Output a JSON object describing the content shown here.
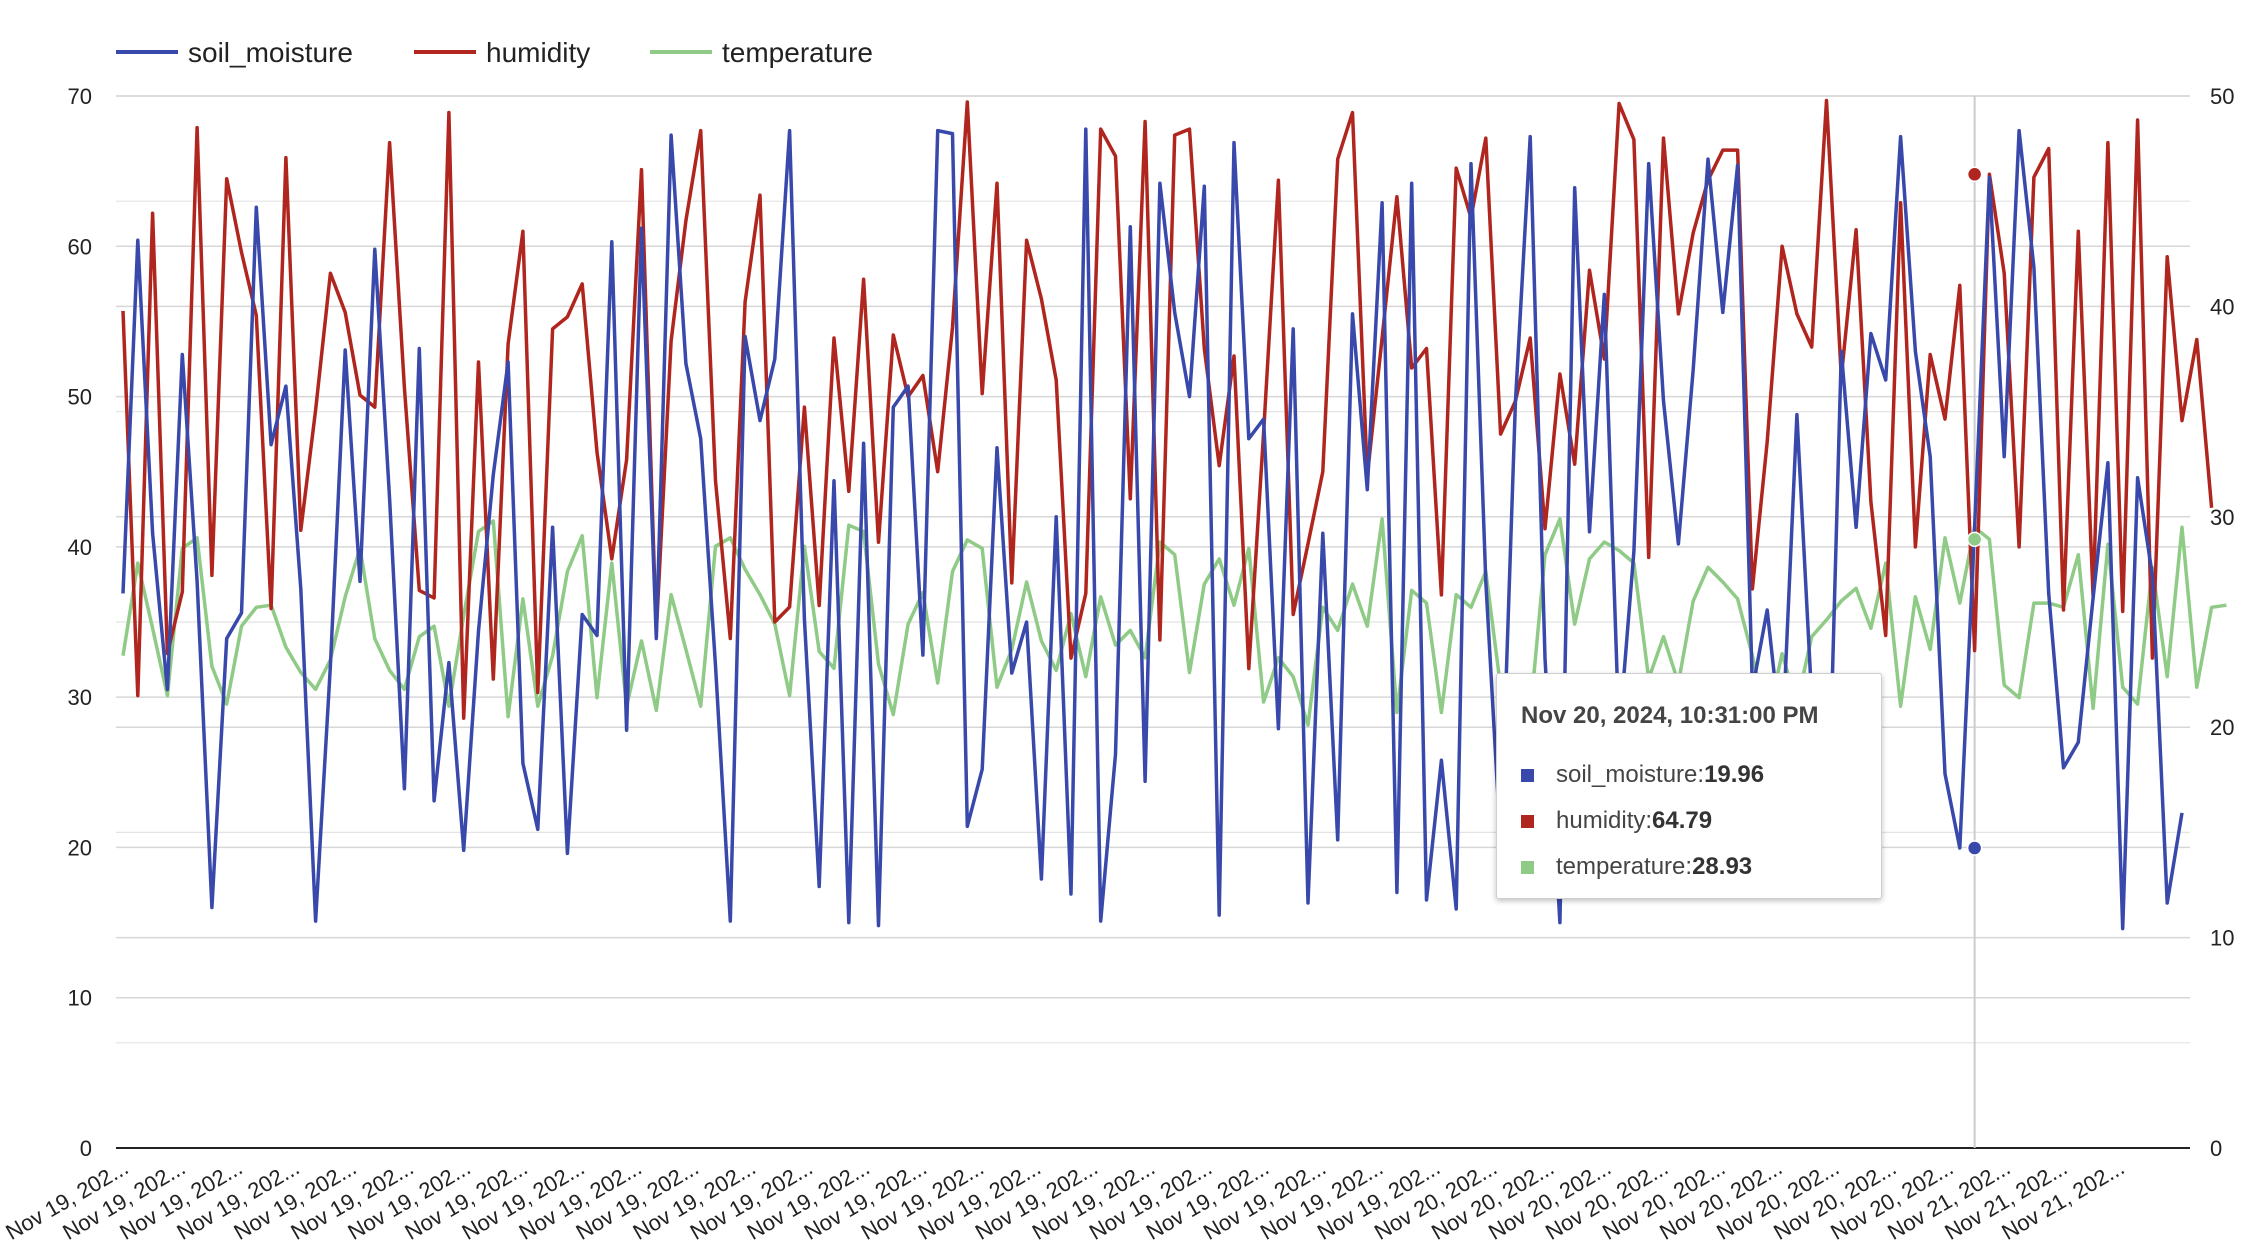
{
  "colors": {
    "soil_moisture": "#3949ab",
    "humidity": "#b0261f",
    "temperature": "#8fcb86",
    "grid": "#d7d7d7",
    "axis": "#222222"
  },
  "chart_data": {
    "type": "line",
    "title": "",
    "legend_position": "top-left",
    "grid": true,
    "axes": {
      "left": {
        "min": 0,
        "max": 70,
        "ticks": [
          "0",
          "10",
          "20",
          "30",
          "40",
          "50",
          "60",
          "70"
        ]
      },
      "right": {
        "min": 0,
        "max": 50,
        "ticks": [
          "0",
          "10",
          "20",
          "30",
          "40",
          "50"
        ]
      }
    },
    "x_tick_labels": [
      "Nov 19, 202...",
      "Nov 19, 202...",
      "Nov 19, 202...",
      "Nov 19, 202...",
      "Nov 19, 202...",
      "Nov 19, 202...",
      "Nov 19, 202...",
      "Nov 19, 202...",
      "Nov 19, 202...",
      "Nov 19, 202...",
      "Nov 19, 202...",
      "Nov 19, 202...",
      "Nov 19, 202...",
      "Nov 19, 202...",
      "Nov 19, 202...",
      "Nov 19, 202...",
      "Nov 19, 202...",
      "Nov 19, 202...",
      "Nov 19, 202...",
      "Nov 19, 202...",
      "Nov 19, 202...",
      "Nov 19, 202...",
      "Nov 19, 202...",
      "Nov 19, 202...",
      "Nov 20, 202...",
      "Nov 20, 202...",
      "Nov 20, 202...",
      "Nov 20, 202...",
      "Nov 20, 202...",
      "Nov 20, 202...",
      "Nov 20, 202...",
      "Nov 20, 202...",
      "Nov 20, 202...",
      "Nov 21, 202...",
      "Nov 21, 202...",
      "Nov 21, 202..."
    ],
    "series": [
      {
        "name": "soil_moisture",
        "axis": "left",
        "values": [
          36.9,
          60.4,
          40.9,
          30.5,
          52.8,
          37.7,
          16.0,
          33.9,
          35.6,
          62.6,
          46.8,
          50.7,
          37.2,
          15.1,
          32.1,
          53.1,
          37.7,
          59.8,
          43.2,
          23.9,
          53.2,
          23.1,
          32.3,
          19.8,
          34.4,
          44.8,
          52.3,
          25.6,
          21.2,
          41.3,
          19.6,
          35.5,
          34.1,
          60.3,
          27.8,
          61.2,
          33.9,
          67.4,
          52.2,
          47.2,
          32.1,
          15.1,
          54.0,
          48.4,
          52.5,
          67.7,
          35.2,
          17.4,
          44.4,
          15.0,
          46.9,
          14.8,
          49.3,
          50.7,
          32.8,
          67.7,
          67.5,
          21.4,
          25.2,
          46.6,
          31.6,
          35.0,
          17.9,
          42.0,
          16.9,
          67.8,
          15.1,
          26.2,
          61.3,
          24.4,
          64.2,
          55.6,
          50.0,
          64.0,
          15.5,
          66.9,
          47.2,
          48.5,
          27.9,
          54.5,
          16.3,
          40.9,
          20.5,
          55.5,
          43.8,
          62.9,
          17.0,
          64.2,
          16.5,
          25.8,
          15.9,
          65.5,
          37.7,
          20.2,
          49.6,
          67.3,
          32.6,
          15.0,
          63.9,
          41.0,
          56.8,
          27.5,
          39.7,
          65.5,
          49.7,
          40.2,
          51.8,
          65.8,
          55.6,
          65.4,
          30.5,
          35.8,
          26.7,
          48.8,
          29.9,
          17.0,
          53.0,
          41.3,
          54.2,
          51.1,
          67.3,
          53.0,
          46.0,
          24.9,
          19.96,
          41.3,
          64.6,
          46.0,
          67.7,
          58.6,
          36.9,
          25.3,
          27.0,
          36.6,
          45.6,
          14.6,
          44.6,
          38.1,
          16.3,
          22.3
        ]
      },
      {
        "name": "humidity",
        "axis": "left",
        "values": [
          55.7,
          30.1,
          62.2,
          32.9,
          37.0,
          67.9,
          38.1,
          64.5,
          59.6,
          55.4,
          35.9,
          65.9,
          41.1,
          49.1,
          58.2,
          55.6,
          50.1,
          49.3,
          66.9,
          50.6,
          37.1,
          36.6,
          68.9,
          28.6,
          52.3,
          31.2,
          53.5,
          61.0,
          30.3,
          54.5,
          55.3,
          57.5,
          46.3,
          39.2,
          45.8,
          65.1,
          34.3,
          53.7,
          61.7,
          67.7,
          44.4,
          33.9,
          56.3,
          63.4,
          35.0,
          36.0,
          49.3,
          36.1,
          53.9,
          43.7,
          57.8,
          40.3,
          54.1,
          50.0,
          51.4,
          45.0,
          54.6,
          69.6,
          50.2,
          64.2,
          37.6,
          60.4,
          56.5,
          51.1,
          32.6,
          36.9,
          67.8,
          66.0,
          43.2,
          68.3,
          33.8,
          67.4,
          67.8,
          53.2,
          45.4,
          52.7,
          31.9,
          47.6,
          64.4,
          35.5,
          40.2,
          45.0,
          65.8,
          68.9,
          44.7,
          53.9,
          63.3,
          51.9,
          53.2,
          36.8,
          65.2,
          61.9,
          67.2,
          47.5,
          49.7,
          53.9,
          41.2,
          51.5,
          45.5,
          58.4,
          52.5,
          69.5,
          67.1,
          39.3,
          67.2,
          55.5,
          60.9,
          64.4,
          66.4,
          66.4,
          37.2,
          47.0,
          60.0,
          55.5,
          53.3,
          69.7,
          51.3,
          61.1,
          43.0,
          34.1,
          62.9,
          40.0,
          52.8,
          48.5,
          57.4,
          33.1,
          64.79,
          58.2,
          40.0,
          64.6,
          66.5,
          35.8,
          61.0,
          36.7,
          66.9,
          35.7,
          68.4,
          32.6,
          59.3,
          48.4,
          53.8,
          42.6
        ]
      },
      {
        "name": "temperature",
        "axis": "right",
        "values": [
          23.4,
          27.8,
          24.7,
          21.5,
          28.5,
          29.0,
          22.9,
          21.1,
          24.8,
          25.7,
          25.8,
          23.8,
          22.6,
          21.8,
          23.2,
          26.2,
          28.5,
          24.2,
          22.7,
          21.8,
          24.3,
          24.8,
          21.0,
          25.3,
          29.3,
          29.8,
          20.5,
          26.1,
          21.0,
          23.4,
          27.4,
          29.1,
          21.4,
          27.8,
          21.0,
          24.1,
          20.8,
          26.3,
          23.7,
          21.0,
          28.6,
          29.0,
          27.5,
          26.3,
          24.9,
          21.5,
          28.6,
          23.6,
          22.8,
          29.6,
          29.3,
          23.0,
          20.6,
          24.9,
          26.4,
          22.1,
          27.4,
          28.9,
          28.5,
          21.9,
          23.7,
          26.9,
          24.1,
          22.7,
          25.4,
          22.4,
          26.2,
          23.9,
          24.6,
          23.3,
          28.8,
          28.2,
          22.6,
          26.8,
          28.0,
          25.8,
          28.5,
          21.2,
          23.3,
          22.4,
          20.1,
          25.7,
          24.6,
          26.8,
          24.8,
          29.9,
          20.7,
          26.5,
          25.9,
          20.7,
          26.3,
          25.7,
          27.4,
          21.9,
          21.7,
          20.6,
          28.2,
          29.9,
          24.9,
          28.0,
          28.8,
          28.4,
          27.8,
          22.3,
          24.3,
          22.1,
          26.0,
          27.6,
          26.9,
          26.1,
          23.4,
          20.3,
          23.5,
          21.1,
          24.3,
          25.1,
          26.0,
          26.6,
          24.7,
          27.8,
          21.0,
          26.2,
          23.7,
          29.0,
          25.9,
          29.5,
          28.93,
          22.0,
          21.4,
          25.9,
          25.9,
          25.7,
          28.2,
          20.9,
          28.7,
          21.9,
          21.1,
          27.6,
          22.4,
          29.5,
          21.9,
          25.7,
          25.8
        ]
      }
    ]
  },
  "legend": {
    "soil_moisture": "soil_moisture",
    "humidity": "humidity",
    "temperature": "temperature"
  },
  "tooltip": {
    "title": "Nov 20, 2024, 10:31:00 PM",
    "index": 125,
    "rows": [
      {
        "label": "soil_moisture: ",
        "value": "19.96",
        "series": "soil_moisture"
      },
      {
        "label": "humidity: ",
        "value": "64.79",
        "series": "humidity"
      },
      {
        "label": "temperature: ",
        "value": "28.93",
        "series": "temperature"
      }
    ]
  }
}
